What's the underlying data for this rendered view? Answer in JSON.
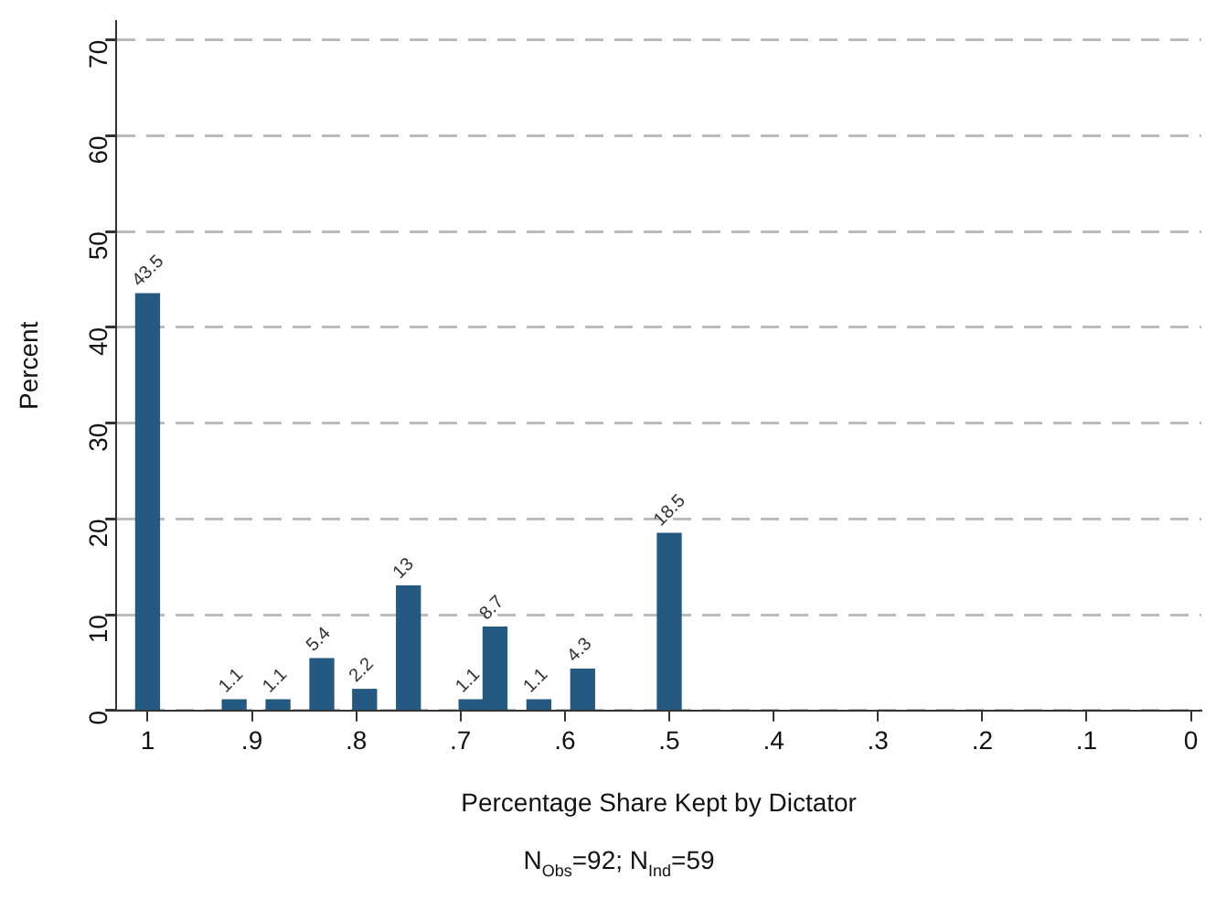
{
  "chart_data": {
    "type": "bar",
    "xlabel": "Percentage Share Kept by Dictator",
    "ylabel": "Percent",
    "annotations": [
      "N$_{Obs}$=92; N$_{Ind}$=59"
    ],
    "x": [
      1,
      0.917,
      0.875,
      0.833,
      0.792,
      0.75,
      0.69,
      0.667,
      0.625,
      0.583,
      0.5
    ],
    "values": [
      43.5,
      1.1,
      1.1,
      5.4,
      2.2,
      13,
      1.1,
      8.7,
      1.1,
      4.3,
      18.5
    ],
    "color": "#245a82",
    "data_labels": true,
    "xlim": [
      1.03,
      -0.01
    ],
    "xticks": [
      1,
      {
        "value": 0.9,
        "label": ".9"
      },
      {
        "value": 0.8,
        "label": ".8"
      },
      {
        "value": 0.7,
        "label": ".7"
      },
      {
        "value": 0.6,
        "label": ".6"
      },
      {
        "value": 0.5,
        "label": ".5"
      },
      {
        "value": 0.4,
        "label": ".4"
      },
      {
        "value": 0.3,
        "label": ".3"
      },
      {
        "value": 0.2,
        "label": ".2"
      },
      {
        "value": 0.1,
        "label": ".1"
      },
      0
    ],
    "ylim": [
      0,
      72
    ],
    "yticks": [
      0,
      10,
      20,
      30,
      40,
      50,
      60,
      70
    ],
    "grid": "y",
    "legend": false
  }
}
